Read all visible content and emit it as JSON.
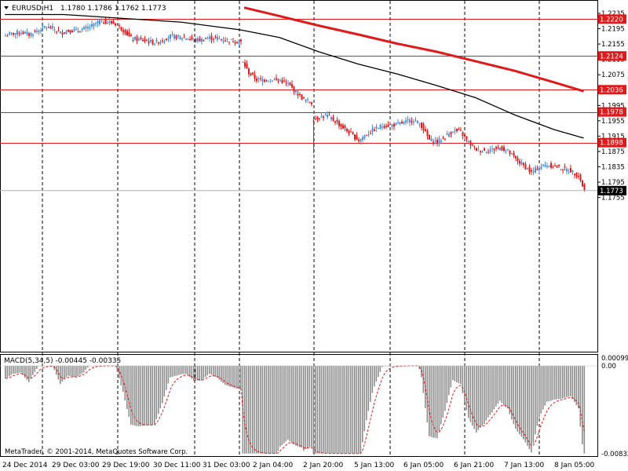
{
  "window": {
    "symbol_header": "EURUSD,H1",
    "ohlc": "1.1780 1.1786 1.1762 1.1773",
    "copyright": "MetaTrader, © 2001-2014, MetaQuotes Software Corp."
  },
  "colors": {
    "bull": "#4d8fdb",
    "bear": "#e01a1a",
    "ma_fast": "#000000",
    "ma_slow": "#e01a1a",
    "level_line": "#e01a1a",
    "grid": "#000000",
    "macd_hist": "#8c8c8c",
    "macd_signal": "#e01a1a"
  },
  "chart_data": {
    "type": "candlestick",
    "price_axis": {
      "ticks": [
        "1.2235",
        "1.2195",
        "1.2155",
        "1.2115",
        "1.2075",
        "1.2035",
        "1.1995",
        "1.1955",
        "1.1915",
        "1.1875",
        "1.1835",
        "1.1795",
        "1.1755"
      ]
    },
    "levels": [
      {
        "label": "1.2220",
        "value": 1.222
      },
      {
        "label": "1.2124",
        "value": 1.2124
      },
      {
        "label": "1.2036",
        "value": 1.2036
      },
      {
        "label": "1.1978",
        "value": 1.1978
      },
      {
        "label": "1.1898",
        "value": 1.1898
      }
    ],
    "current_price": {
      "label": "1.1773",
      "value": 1.1773
    },
    "time_labels": [
      "24 Dec 2014",
      "29 Dec 03:00",
      "29 Dec 19:00",
      "30 Dec 11:00",
      "31 Dec 03:00",
      "2 Jan 04:00",
      "2 Jan 20:00",
      "5 Jan 13:00",
      "6 Jan 05:00",
      "6 Jan 21:00",
      "7 Jan 13:00",
      "8 Jan 05:00"
    ],
    "close_path": [
      [
        0,
        1.2177
      ],
      [
        4,
        1.2183
      ],
      [
        8,
        1.2186
      ],
      [
        12,
        1.218
      ],
      [
        16,
        1.2189
      ],
      [
        20,
        1.22
      ],
      [
        24,
        1.2196
      ],
      [
        28,
        1.2184
      ],
      [
        32,
        1.219
      ],
      [
        36,
        1.219
      ],
      [
        40,
        1.2194
      ],
      [
        44,
        1.2202
      ],
      [
        48,
        1.2215
      ],
      [
        52,
        1.2212
      ],
      [
        56,
        1.2208
      ],
      [
        60,
        1.2192
      ],
      [
        64,
        1.217
      ],
      [
        68,
        1.2166
      ],
      [
        72,
        1.2163
      ],
      [
        76,
        1.2158
      ],
      [
        80,
        1.2165
      ],
      [
        84,
        1.2176
      ],
      [
        88,
        1.2173
      ],
      [
        92,
        1.2171
      ],
      [
        96,
        1.2166
      ],
      [
        100,
        1.2166
      ],
      [
        104,
        1.2171
      ],
      [
        108,
        1.217
      ],
      [
        112,
        1.2166
      ],
      [
        116,
        1.2163
      ],
      [
        120,
        1.216
      ],
      [
        121,
        1.2107
      ],
      [
        124,
        1.208
      ],
      [
        128,
        1.2062
      ],
      [
        132,
        1.2062
      ],
      [
        136,
        1.2063
      ],
      [
        140,
        1.206
      ],
      [
        144,
        1.205
      ],
      [
        148,
        1.203
      ],
      [
        152,
        1.201
      ],
      [
        156,
        1.2002
      ],
      [
        157,
        1.1958
      ],
      [
        160,
        1.1965
      ],
      [
        164,
        1.1968
      ],
      [
        168,
        1.1954
      ],
      [
        172,
        1.1937
      ],
      [
        176,
        1.192
      ],
      [
        180,
        1.1904
      ],
      [
        184,
        1.192
      ],
      [
        188,
        1.1933
      ],
      [
        192,
        1.1942
      ],
      [
        196,
        1.1943
      ],
      [
        200,
        1.1946
      ],
      [
        204,
        1.1952
      ],
      [
        208,
        1.1958
      ],
      [
        212,
        1.1942
      ],
      [
        216,
        1.1905
      ],
      [
        220,
        1.19
      ],
      [
        224,
        1.1913
      ],
      [
        228,
        1.193
      ],
      [
        232,
        1.1925
      ],
      [
        236,
        1.1898
      ],
      [
        240,
        1.188
      ],
      [
        244,
        1.1877
      ],
      [
        248,
        1.188
      ],
      [
        252,
        1.1885
      ],
      [
        256,
        1.1876
      ],
      [
        260,
        1.1855
      ],
      [
        264,
        1.1838
      ],
      [
        268,
        1.182
      ],
      [
        272,
        1.1835
      ],
      [
        276,
        1.184
      ],
      [
        280,
        1.1836
      ],
      [
        284,
        1.183
      ],
      [
        288,
        1.1825
      ],
      [
        292,
        1.1812
      ],
      [
        295,
        1.1773
      ]
    ],
    "ma_fast": [
      [
        0,
        1.2232
      ],
      [
        30,
        1.2232
      ],
      [
        60,
        1.2222
      ],
      [
        90,
        1.2212
      ],
      [
        120,
        1.2192
      ],
      [
        140,
        1.2172
      ],
      [
        160,
        1.2135
      ],
      [
        180,
        1.2103
      ],
      [
        200,
        1.2077
      ],
      [
        220,
        1.2047
      ],
      [
        240,
        1.2015
      ],
      [
        260,
        1.197
      ],
      [
        280,
        1.1932
      ],
      [
        295,
        1.191
      ]
    ],
    "ma_slow": [
      [
        122,
        1.225
      ],
      [
        140,
        1.2228
      ],
      [
        160,
        1.2203
      ],
      [
        180,
        1.218
      ],
      [
        200,
        1.2156
      ],
      [
        220,
        1.2135
      ],
      [
        240,
        1.211
      ],
      [
        260,
        1.2085
      ],
      [
        280,
        1.2055
      ],
      [
        295,
        1.2032
      ]
    ],
    "macd": {
      "label": "MACD(5,34,5) -0.00445 -0.00335",
      "ticks": [
        "0.00099",
        "0.00",
        "-0.00832"
      ]
    }
  }
}
